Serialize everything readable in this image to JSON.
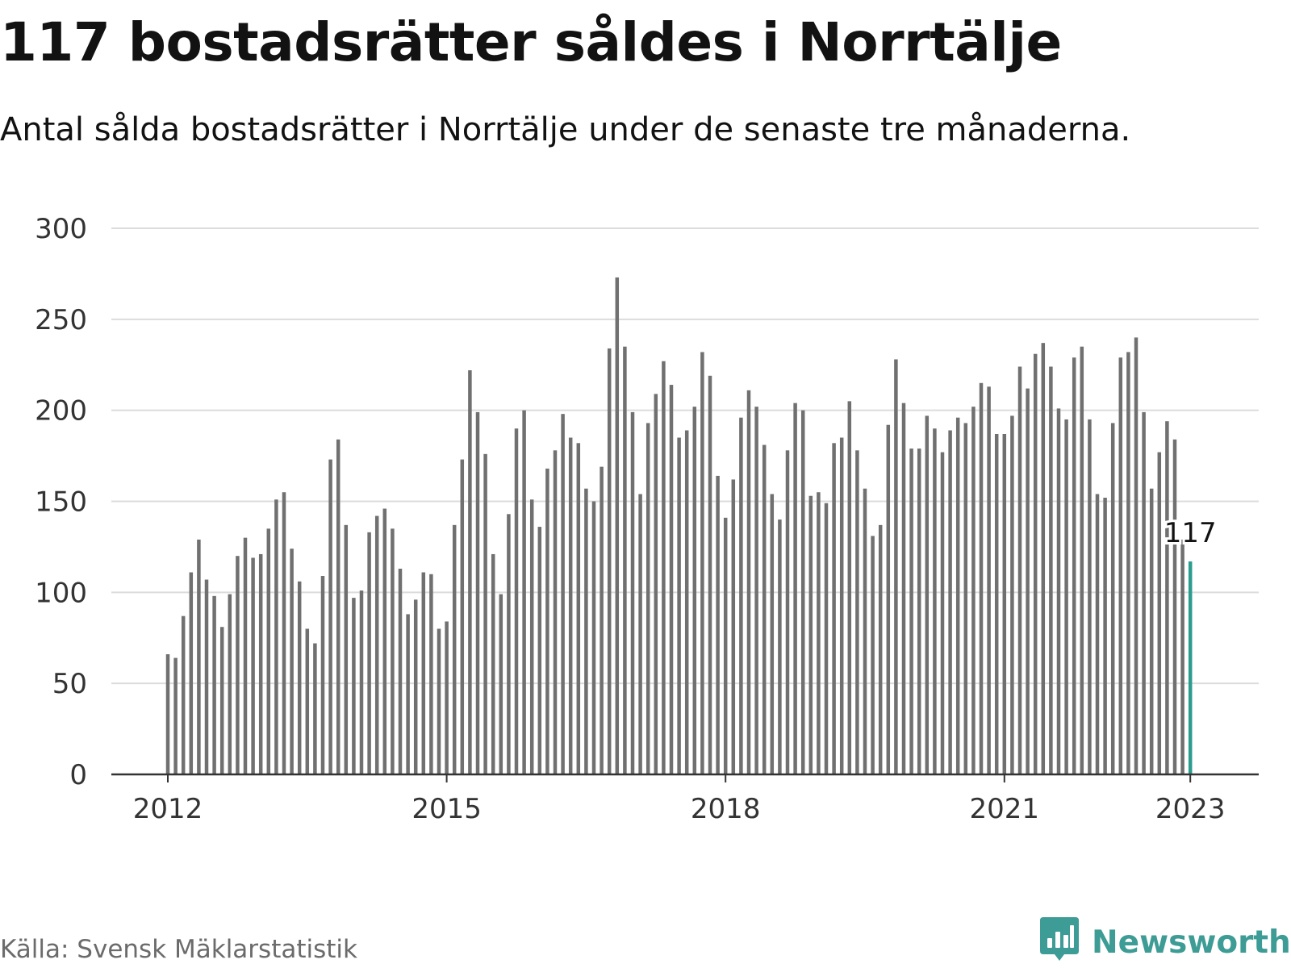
{
  "header": {
    "title": "117 bostadsrätter såldes i Norrtälje",
    "subtitle": "Antal sålda bostadsrätter i Norrtälje under de senaste tre månaderna."
  },
  "footer": {
    "source": "Källa: Svensk Mäklarstatistik",
    "brand": "Newsworthy",
    "brand_icon": "bar-chart-speech-bubble-icon"
  },
  "colors": {
    "bar": "#707070",
    "highlight": "#2a9d8f",
    "grid": "#dcdcdc",
    "axis": "#333333",
    "brand": "#3d9c95"
  },
  "chart_data": {
    "type": "bar",
    "title": "117 bostadsrätter såldes i Norrtälje",
    "subtitle": "Antal sålda bostadsrätter i Norrtälje under de senaste tre månaderna.",
    "xlabel": "",
    "ylabel": "",
    "ylim": [
      0,
      300
    ],
    "y_ticks": [
      "0",
      "50",
      "100",
      "150",
      "200",
      "250",
      "300"
    ],
    "x_ticks": [
      {
        "label": "2012",
        "x": "2012-01"
      },
      {
        "label": "2015",
        "x": "2015-01"
      },
      {
        "label": "2018",
        "x": "2018-01"
      },
      {
        "label": "2021",
        "x": "2021-01"
      },
      {
        "label": "2023",
        "x": "2023-01"
      }
    ],
    "grid": true,
    "highlight_label": "117",
    "x": [
      "2012-01",
      "2012-02",
      "2012-03",
      "2012-04",
      "2012-05",
      "2012-06",
      "2012-07",
      "2012-08",
      "2012-09",
      "2012-10",
      "2012-11",
      "2012-12",
      "2013-01",
      "2013-02",
      "2013-03",
      "2013-04",
      "2013-05",
      "2013-06",
      "2013-07",
      "2013-08",
      "2013-09",
      "2013-10",
      "2013-11",
      "2013-12",
      "2014-01",
      "2014-02",
      "2014-03",
      "2014-04",
      "2014-05",
      "2014-06",
      "2014-07",
      "2014-08",
      "2014-09",
      "2014-10",
      "2014-11",
      "2014-12",
      "2015-01",
      "2015-02",
      "2015-03",
      "2015-04",
      "2015-05",
      "2015-06",
      "2015-07",
      "2015-08",
      "2015-09",
      "2015-10",
      "2015-11",
      "2015-12",
      "2016-01",
      "2016-02",
      "2016-03",
      "2016-04",
      "2016-05",
      "2016-06",
      "2016-07",
      "2016-08",
      "2016-09",
      "2016-10",
      "2016-11",
      "2016-12",
      "2017-01",
      "2017-02",
      "2017-03",
      "2017-04",
      "2017-05",
      "2017-06",
      "2017-07",
      "2017-08",
      "2017-09",
      "2017-10",
      "2017-11",
      "2017-12",
      "2018-01",
      "2018-02",
      "2018-03",
      "2018-04",
      "2018-05",
      "2018-06",
      "2018-07",
      "2018-08",
      "2018-09",
      "2018-10",
      "2018-11",
      "2018-12",
      "2019-01",
      "2019-02",
      "2019-03",
      "2019-04",
      "2019-05",
      "2019-06",
      "2019-07",
      "2019-08",
      "2019-09",
      "2019-10",
      "2019-11",
      "2019-12",
      "2020-01",
      "2020-02",
      "2020-03",
      "2020-04",
      "2020-05",
      "2020-06",
      "2020-07",
      "2020-08",
      "2020-09",
      "2020-10",
      "2020-11",
      "2020-12",
      "2021-01",
      "2021-02",
      "2021-03",
      "2021-04",
      "2021-05",
      "2021-06",
      "2021-07",
      "2021-08",
      "2021-09",
      "2021-10",
      "2021-11",
      "2021-12",
      "2022-01",
      "2022-02",
      "2022-03",
      "2022-04",
      "2022-05",
      "2022-06",
      "2022-07",
      "2022-08",
      "2022-09",
      "2022-10",
      "2022-11",
      "2022-12",
      "2023-01"
    ],
    "values": [
      66,
      64,
      87,
      111,
      129,
      107,
      98,
      81,
      99,
      120,
      130,
      119,
      121,
      135,
      151,
      155,
      124,
      106,
      80,
      72,
      109,
      173,
      184,
      137,
      97,
      101,
      133,
      142,
      146,
      135,
      113,
      88,
      96,
      111,
      110,
      80,
      84,
      137,
      173,
      222,
      199,
      176,
      121,
      99,
      143,
      190,
      200,
      151,
      136,
      168,
      178,
      198,
      185,
      182,
      157,
      150,
      169,
      234,
      273,
      235,
      199,
      154,
      193,
      209,
      227,
      214,
      185,
      189,
      202,
      232,
      219,
      164,
      141,
      162,
      196,
      211,
      202,
      181,
      154,
      140,
      178,
      204,
      200,
      153,
      155,
      149,
      182,
      185,
      205,
      178,
      157,
      131,
      137,
      192,
      228,
      204,
      179,
      179,
      197,
      190,
      177,
      189,
      196,
      193,
      202,
      215,
      213,
      187,
      187,
      197,
      224,
      212,
      231,
      237,
      224,
      201,
      195,
      229,
      235,
      195,
      154,
      152,
      193,
      229,
      232,
      240,
      199,
      157,
      177,
      194,
      184,
      129,
      117
    ]
  }
}
